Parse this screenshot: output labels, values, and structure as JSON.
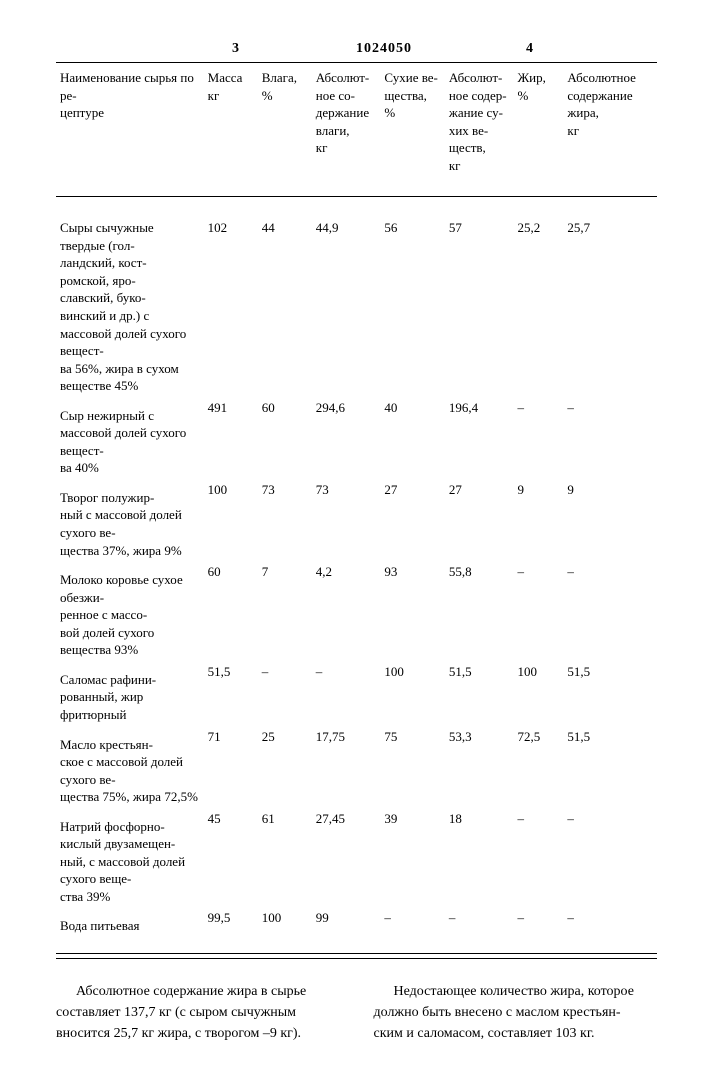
{
  "doc_number": "1024050",
  "page_left_num": "3",
  "page_right_num": "4",
  "table": {
    "columns": [
      "Наименование сырья по ре-\nцептуре",
      "Масса\nкг",
      "Влага,\n%",
      "Абсолют-\nное со-\nдержание\nвлаги,\nкг",
      "Сухие ве-\nщества,\n%",
      "Абсолют-\nное содер-\nжание су-\nхих ве-\nществ,\nкг",
      "Жир,\n%",
      "Абсолютное\nсодержание\nжира,\nкг"
    ],
    "rows": [
      [
        "Сыры сычужные твердые (гол-\nландский, кост-\nромской, яро-\nславский, буко-\nвинский и др.) с массовой долей сухого вещест-\nва 56%, жира в сухом веществе 45%",
        "102",
        "44",
        "44,9",
        "56",
        "57",
        "25,2",
        "25,7"
      ],
      [
        "Сыр нежирный с массовой долей сухого вещест-\nва 40%",
        "491",
        "60",
        "294,6",
        "40",
        "196,4",
        "–",
        "–"
      ],
      [
        "Творог полужир-\nный с массовой долей сухого ве-\nщества 37%, жира 9%",
        "100",
        "73",
        "73",
        "27",
        "27",
        "9",
        "9"
      ],
      [
        "Молоко коровье сухое обезжи-\nренное с массо-\nвой долей сухого вещества 93%",
        "60",
        "7",
        "4,2",
        "93",
        "55,8",
        "–",
        "–"
      ],
      [
        "Саломас рафини-\nрованный, жир фритюрный",
        "51,5",
        "–",
        "–",
        "100",
        "51,5",
        "100",
        "51,5"
      ],
      [
        "Масло крестьян-\nское с массовой долей сухого ве-\nщества 75%, жира 72,5%",
        "71",
        "25",
        "17,75",
        "75",
        "53,3",
        "72,5",
        "51,5"
      ],
      [
        "Натрий фосфорно-\nкислый двузамещен-\nный, с массовой долей сухого веще-\nства 39%",
        "45",
        "61",
        "27,45",
        "39",
        "18",
        "–",
        "–"
      ],
      [
        "Вода питьевая",
        "99,5",
        "100",
        "99",
        "–",
        "–",
        "–",
        "–"
      ]
    ]
  },
  "footer": {
    "left": "Абсолютное содержание жира в сырье составляет 137,7 кг (с сыром сычужным вносится 25,7 кг жира, с творогом –9 кг).",
    "right": "Недостающее количество жира, которое должно быть внесено с маслом крестьян-\nским и саломасом, составляет 103 кг."
  }
}
